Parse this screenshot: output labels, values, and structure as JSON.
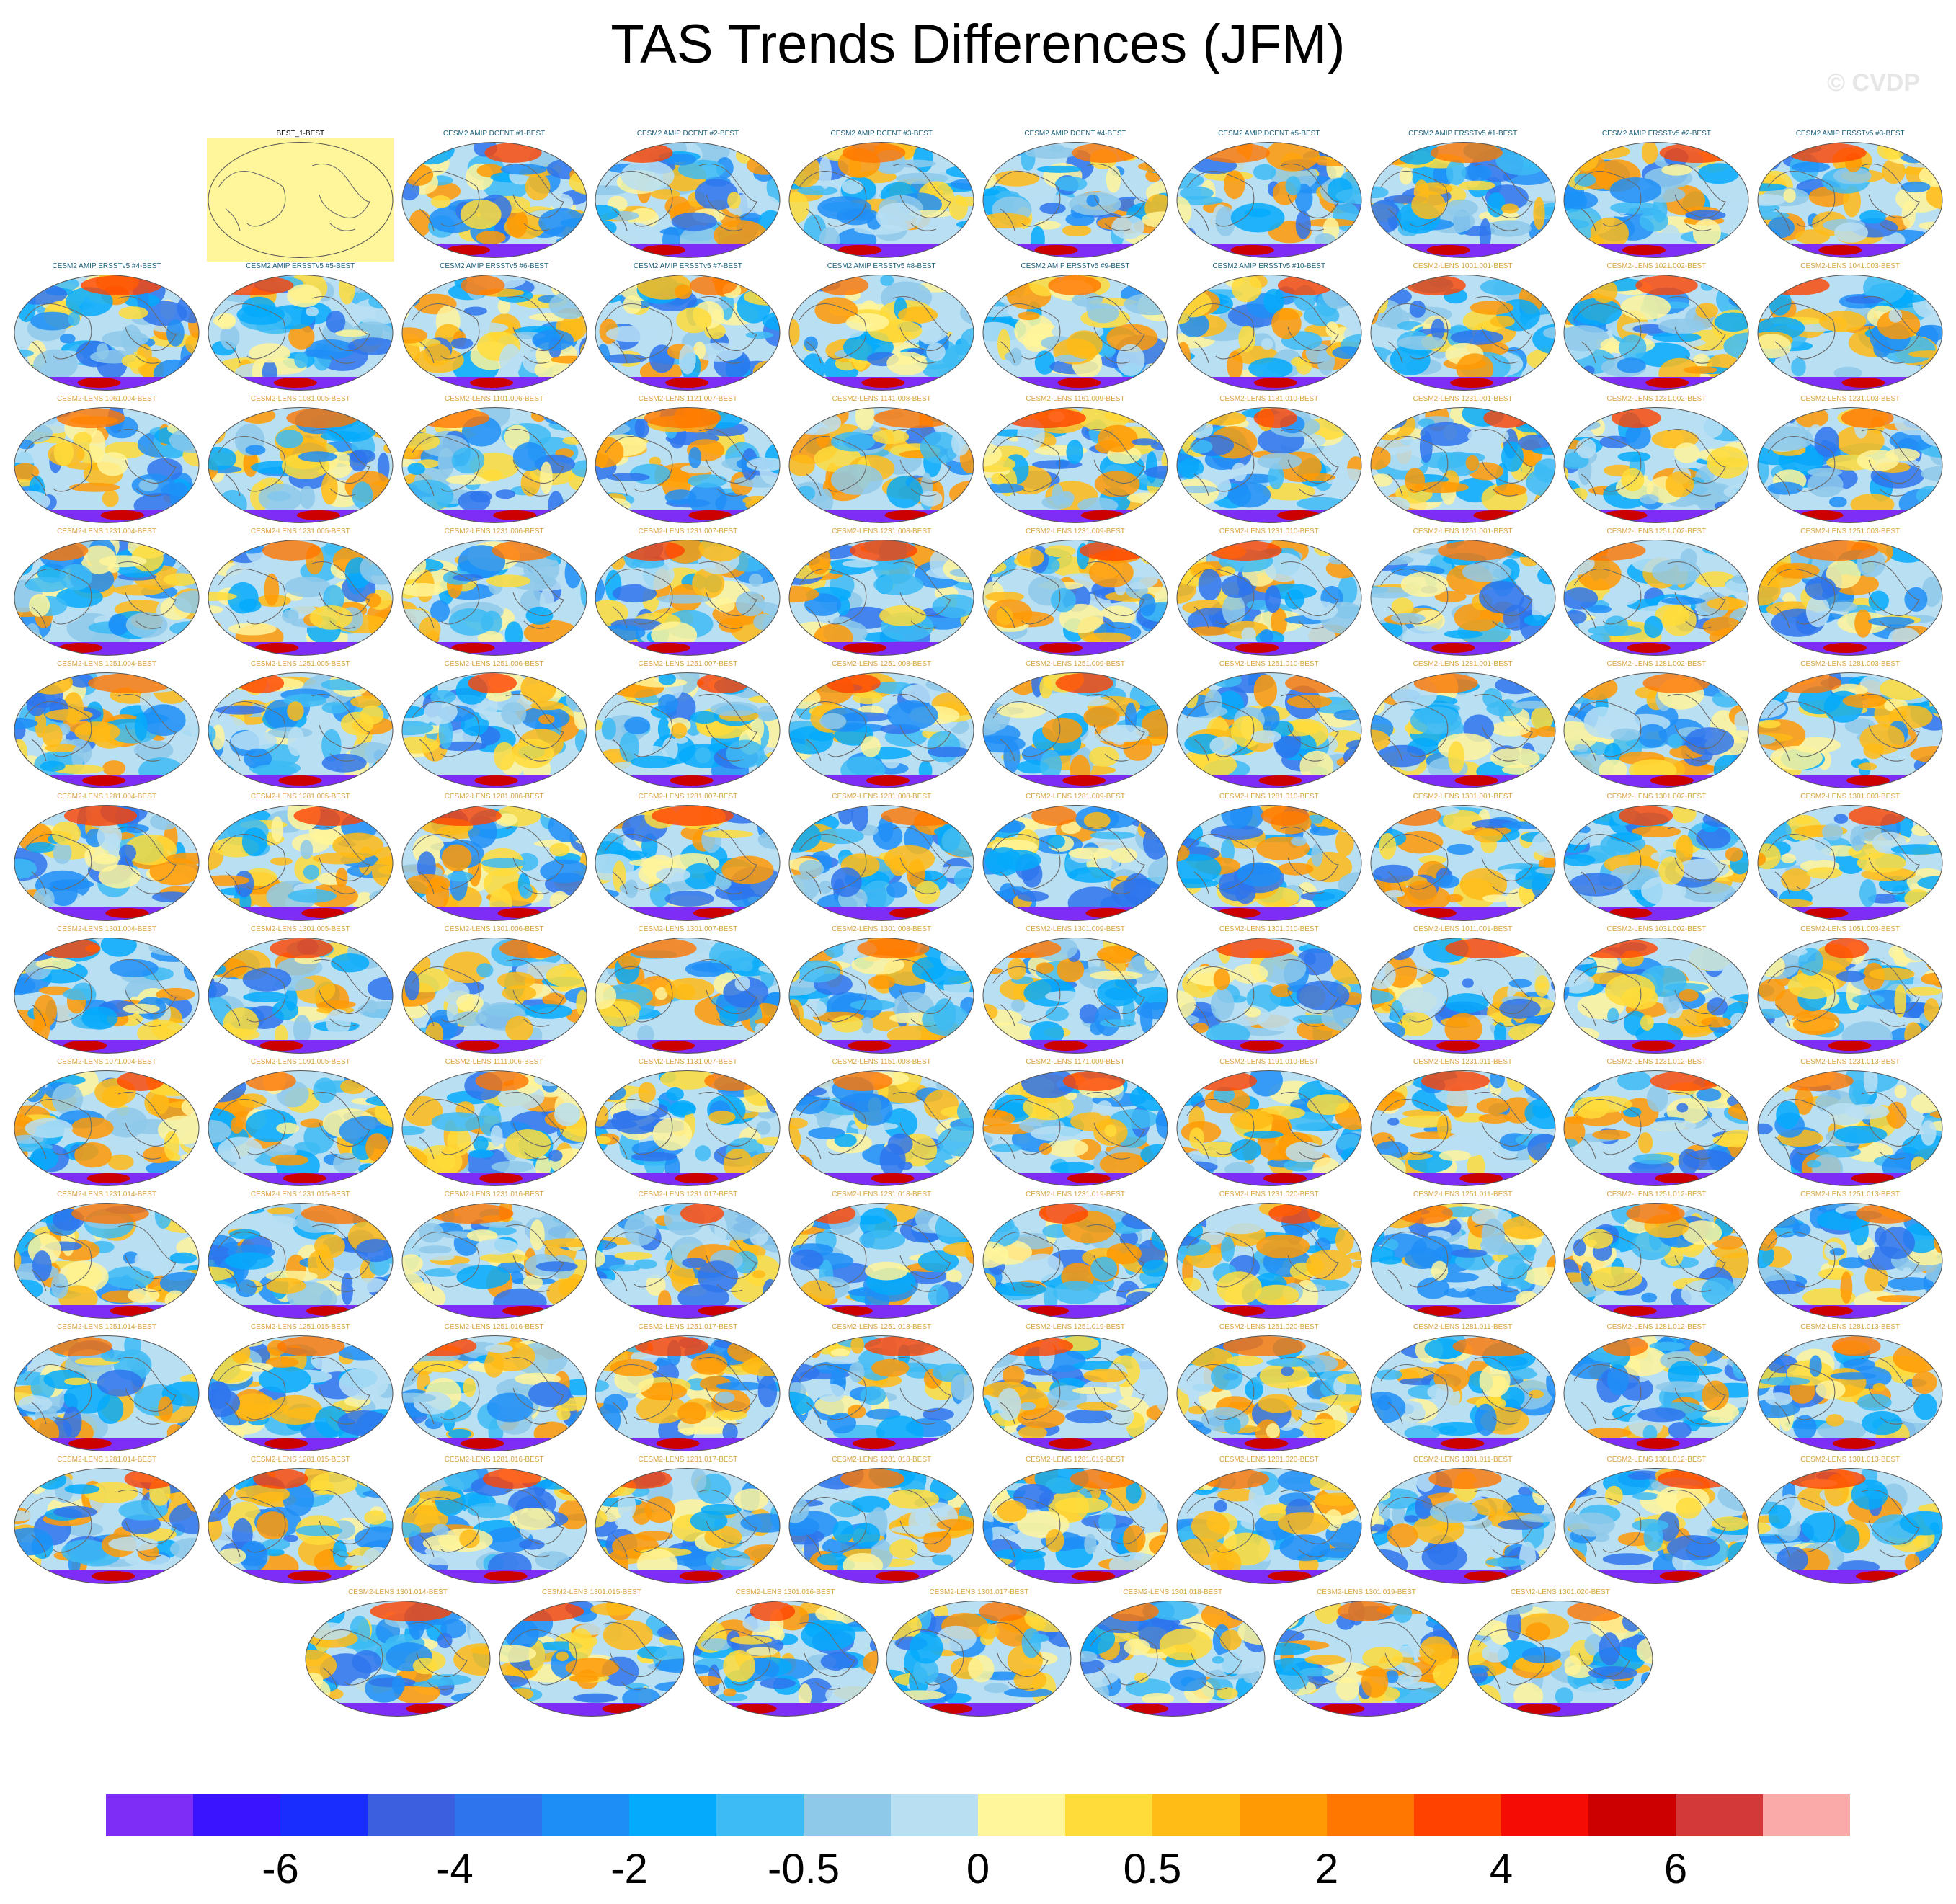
{
  "title": "TAS Trends Differences (JFM)",
  "watermark": "© CVDP",
  "chart_data": {
    "type": "heatmap",
    "title": "TAS Trends Differences (JFM)",
    "projection": "global map panels",
    "panel_titles": [
      "BEST_1-BEST",
      "CESM2 AMIP DCENT #1-BEST",
      "CESM2 AMIP DCENT #2-BEST",
      "CESM2 AMIP DCENT #3-BEST",
      "CESM2 AMIP DCENT #4-BEST",
      "CESM2 AMIP DCENT #5-BEST",
      "CESM2 AMIP ERSSTv5 #1-BEST",
      "CESM2 AMIP ERSSTv5 #2-BEST",
      "CESM2 AMIP ERSSTv5 #3-BEST",
      "CESM2 AMIP ERSSTv5 #4-BEST",
      "CESM2 AMIP ERSSTv5 #5-BEST",
      "CESM2 AMIP ERSSTv5 #6-BEST",
      "CESM2 AMIP ERSSTv5 #7-BEST",
      "CESM2 AMIP ERSSTv5 #8-BEST",
      "CESM2 AMIP ERSSTv5 #9-BEST",
      "CESM2 AMIP ERSSTv5 #10-BEST",
      "CESM2-LENS 1001.001-BEST",
      "CESM2-LENS 1021.002-BEST",
      "CESM2-LENS 1041.003-BEST",
      "CESM2-LENS 1061.004-BEST",
      "CESM2-LENS 1081.005-BEST",
      "CESM2-LENS 1101.006-BEST",
      "CESM2-LENS 1121.007-BEST",
      "CESM2-LENS 1141.008-BEST",
      "CESM2-LENS 1161.009-BEST",
      "CESM2-LENS 1181.010-BEST",
      "CESM2-LENS 1231.001-BEST",
      "CESM2-LENS 1231.002-BEST",
      "CESM2-LENS 1231.003-BEST",
      "CESM2-LENS 1231.004-BEST",
      "CESM2-LENS 1231.005-BEST",
      "CESM2-LENS 1231.006-BEST",
      "CESM2-LENS 1231.007-BEST",
      "CESM2-LENS 1231.008-BEST",
      "CESM2-LENS 1231.009-BEST",
      "CESM2-LENS 1231.010-BEST",
      "CESM2-LENS 1251.001-BEST",
      "CESM2-LENS 1251.002-BEST",
      "CESM2-LENS 1251.003-BEST",
      "CESM2-LENS 1251.004-BEST",
      "CESM2-LENS 1251.005-BEST",
      "CESM2-LENS 1251.006-BEST",
      "CESM2-LENS 1251.007-BEST",
      "CESM2-LENS 1251.008-BEST",
      "CESM2-LENS 1251.009-BEST",
      "CESM2-LENS 1251.010-BEST",
      "CESM2-LENS 1281.001-BEST",
      "CESM2-LENS 1281.002-BEST",
      "CESM2-LENS 1281.003-BEST",
      "CESM2-LENS 1281.004-BEST",
      "CESM2-LENS 1281.005-BEST",
      "CESM2-LENS 1281.006-BEST",
      "CESM2-LENS 1281.007-BEST",
      "CESM2-LENS 1281.008-BEST",
      "CESM2-LENS 1281.009-BEST",
      "CESM2-LENS 1281.010-BEST",
      "CESM2-LENS 1301.001-BEST",
      "CESM2-LENS 1301.002-BEST",
      "CESM2-LENS 1301.003-BEST",
      "CESM2-LENS 1301.004-BEST",
      "CESM2-LENS 1301.005-BEST",
      "CESM2-LENS 1301.006-BEST",
      "CESM2-LENS 1301.007-BEST",
      "CESM2-LENS 1301.008-BEST",
      "CESM2-LENS 1301.009-BEST",
      "CESM2-LENS 1301.010-BEST",
      "CESM2-LENS 1011.001-BEST",
      "CESM2-LENS 1031.002-BEST",
      "CESM2-LENS 1051.003-BEST",
      "CESM2-LENS 1071.004-BEST",
      "CESM2-LENS 1091.005-BEST",
      "CESM2-LENS 1111.006-BEST",
      "CESM2-LENS 1131.007-BEST",
      "CESM2-LENS 1151.008-BEST",
      "CESM2-LENS 1171.009-BEST",
      "CESM2-LENS 1191.010-BEST",
      "CESM2-LENS 1231.011-BEST",
      "CESM2-LENS 1231.012-BEST",
      "CESM2-LENS 1231.013-BEST",
      "CESM2-LENS 1231.014-BEST",
      "CESM2-LENS 1231.015-BEST",
      "CESM2-LENS 1231.016-BEST",
      "CESM2-LENS 1231.017-BEST",
      "CESM2-LENS 1231.018-BEST",
      "CESM2-LENS 1231.019-BEST",
      "CESM2-LENS 1231.020-BEST",
      "CESM2-LENS 1251.011-BEST",
      "CESM2-LENS 1251.012-BEST",
      "CESM2-LENS 1251.013-BEST",
      "CESM2-LENS 1251.014-BEST",
      "CESM2-LENS 1251.015-BEST",
      "CESM2-LENS 1251.016-BEST",
      "CESM2-LENS 1251.017-BEST",
      "CESM2-LENS 1251.018-BEST",
      "CESM2-LENS 1251.019-BEST",
      "CESM2-LENS 1251.020-BEST",
      "CESM2-LENS 1281.011-BEST",
      "CESM2-LENS 1281.012-BEST",
      "CESM2-LENS 1281.013-BEST",
      "CESM2-LENS 1281.014-BEST",
      "CESM2-LENS 1281.015-BEST",
      "CESM2-LENS 1281.016-BEST",
      "CESM2-LENS 1281.017-BEST",
      "CESM2-LENS 1281.018-BEST",
      "CESM2-LENS 1281.019-BEST",
      "CESM2-LENS 1281.020-BEST",
      "CESM2-LENS 1301.011-BEST",
      "CESM2-LENS 1301.012-BEST",
      "CESM2-LENS 1301.013-BEST",
      "CESM2-LENS 1301.014-BEST",
      "CESM2-LENS 1301.015-BEST",
      "CESM2-LENS 1301.016-BEST",
      "CESM2-LENS 1301.017-BEST",
      "CESM2-LENS 1301.018-BEST",
      "CESM2-LENS 1301.019-BEST",
      "CESM2-LENS 1301.020-BEST"
    ],
    "colorbar": {
      "colors": [
        "#7d2df5",
        "#3a14ff",
        "#1a2dff",
        "#3c5fe0",
        "#2e74ec",
        "#1e8ef7",
        "#05aafc",
        "#3dbbf4",
        "#8ec9ea",
        "#b9dff3",
        "#fff59a",
        "#ffdc3a",
        "#ffbb16",
        "#ff9a05",
        "#ff7600",
        "#ff4200",
        "#f50c05",
        "#cc0000",
        "#d4393a",
        "#fbaaaa"
      ],
      "tick_labels": [
        "-6",
        "-4",
        "-2",
        "-0.5",
        "0",
        "0.5",
        "2",
        "4",
        "6"
      ]
    }
  }
}
